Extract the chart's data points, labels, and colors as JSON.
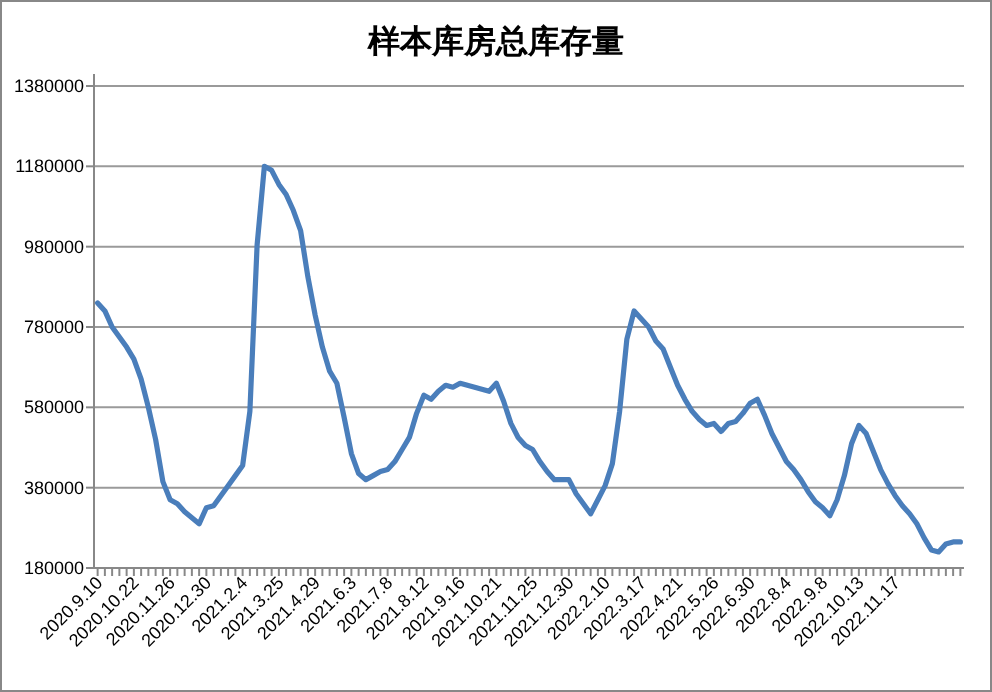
{
  "chart_data": {
    "type": "line",
    "title": "样本库房总库存量",
    "categories": [
      "2020.9.10",
      null,
      null,
      null,
      null,
      "2020.10.22",
      null,
      null,
      null,
      null,
      "2020.11.26",
      null,
      null,
      null,
      null,
      "2020.12.30",
      null,
      null,
      null,
      null,
      "2021.2.4",
      null,
      null,
      null,
      null,
      "2021.3.25",
      null,
      null,
      null,
      null,
      "2021.4.29",
      null,
      null,
      null,
      null,
      "2021.6.3",
      null,
      null,
      null,
      null,
      "2021.7.8",
      null,
      null,
      null,
      null,
      "2021.8.12",
      null,
      null,
      null,
      null,
      "2021.9.16",
      null,
      null,
      null,
      null,
      "2021.10.21",
      null,
      null,
      null,
      null,
      "2021.11.25",
      null,
      null,
      null,
      null,
      "2021.12.30",
      null,
      null,
      null,
      null,
      "2022.2.10",
      null,
      null,
      null,
      null,
      "2022.3.17",
      null,
      null,
      null,
      null,
      "2022.4.21",
      null,
      null,
      null,
      null,
      "2022.5.26",
      null,
      null,
      null,
      null,
      "2022.6.30",
      null,
      null,
      null,
      null,
      "2022.8.4",
      null,
      null,
      null,
      null,
      "2022.9.8",
      null,
      null,
      null,
      null,
      "2022.10.13",
      null,
      null,
      null,
      null,
      "2022.11.17",
      null,
      null,
      null,
      null,
      null,
      null,
      null,
      null,
      null
    ],
    "series": [
      {
        "color": "#4a7ebb",
        "values": [
          840000,
          820000,
          780000,
          755000,
          730000,
          700000,
          650000,
          580000,
          500000,
          395000,
          350000,
          340000,
          320000,
          305000,
          290000,
          330000,
          335000,
          360000,
          385000,
          410000,
          435000,
          570000,
          985000,
          1180000,
          1170000,
          1135000,
          1110000,
          1070000,
          1020000,
          905000,
          810000,
          730000,
          670000,
          640000,
          555000,
          465000,
          415000,
          400000,
          410000,
          420000,
          425000,
          445000,
          475000,
          505000,
          565000,
          610000,
          600000,
          620000,
          635000,
          630000,
          640000,
          635000,
          630000,
          625000,
          620000,
          640000,
          595000,
          540000,
          505000,
          485000,
          475000,
          445000,
          420000,
          400000,
          400000,
          400000,
          365000,
          340000,
          315000,
          350000,
          385000,
          440000,
          570000,
          750000,
          820000,
          800000,
          780000,
          745000,
          725000,
          680000,
          635000,
          600000,
          570000,
          550000,
          535000,
          540000,
          520000,
          540000,
          545000,
          565000,
          590000,
          600000,
          560000,
          515000,
          480000,
          445000,
          425000,
          400000,
          370000,
          345000,
          330000,
          310000,
          350000,
          410000,
          490000,
          535000,
          515000,
          470000,
          425000,
          390000,
          360000,
          335000,
          315000,
          290000,
          255000,
          225000,
          220000,
          240000,
          245000,
          245000
        ]
      }
    ],
    "ylim": [
      180000,
      1380000
    ],
    "yticks": [
      180000,
      380000,
      580000,
      780000,
      980000,
      1180000,
      1380000
    ],
    "grid": "y"
  }
}
